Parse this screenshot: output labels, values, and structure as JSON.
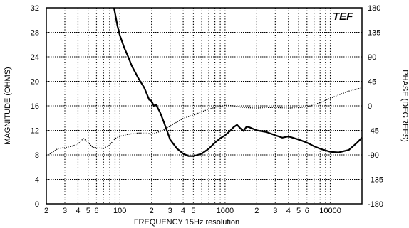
{
  "chart_data": {
    "type": "line",
    "logo": "TEF",
    "xlabel": "FREQUENCY  15Hz resolution",
    "ylabel_left": "MAGNITUDE (OHMS)",
    "ylabel_right": "PHASE (DEGREES)",
    "x_scale": "log",
    "xlim": [
      20,
      20000
    ],
    "ylim_left": [
      0,
      32
    ],
    "ylim_right": [
      -180,
      180
    ],
    "grid": true,
    "x_tick_labels": [
      {
        "value": 20,
        "label": "2"
      },
      {
        "value": 30,
        "label": "3"
      },
      {
        "value": 40,
        "label": "4"
      },
      {
        "value": 50,
        "label": "5"
      },
      {
        "value": 60,
        "label": "6"
      },
      {
        "value": 100,
        "label": "100"
      },
      {
        "value": 200,
        "label": "2"
      },
      {
        "value": 300,
        "label": "3"
      },
      {
        "value": 400,
        "label": "4"
      },
      {
        "value": 500,
        "label": "5"
      },
      {
        "value": 1000,
        "label": "1000"
      },
      {
        "value": 2000,
        "label": "2"
      },
      {
        "value": 3000,
        "label": "3"
      },
      {
        "value": 4000,
        "label": "4"
      },
      {
        "value": 5000,
        "label": "5"
      },
      {
        "value": 6000,
        "label": "6"
      },
      {
        "value": 10000,
        "label": "10000"
      }
    ],
    "y_left_ticks": [
      "0",
      "4",
      "8",
      "12",
      "16",
      "20",
      "24",
      "28",
      "32"
    ],
    "y_right_ticks": [
      "-180",
      "-135",
      "-90",
      "-45",
      "0",
      "45",
      "90",
      "135",
      "180"
    ],
    "series": [
      {
        "axis": "left",
        "style": "solid",
        "x": [
          88,
          95,
          100,
          110,
          120,
          130,
          150,
          170,
          180,
          190,
          200,
          210,
          220,
          240,
          260,
          280,
          300,
          350,
          400,
          450,
          500,
          550,
          600,
          700,
          800,
          900,
          1000,
          1100,
          1200,
          1300,
          1400,
          1500,
          1600,
          1700,
          2000,
          2500,
          3000,
          3500,
          4000,
          5000,
          6000,
          7000,
          8000,
          10000,
          12000,
          15000,
          18000,
          20000
        ],
        "y": [
          32,
          29,
          27.5,
          25.5,
          24,
          22.5,
          20.5,
          19,
          18,
          17,
          16.8,
          16,
          16.2,
          15,
          13.5,
          12,
          10.5,
          9,
          8.2,
          7.8,
          7.8,
          8,
          8.2,
          9,
          10,
          10.7,
          11.2,
          11.8,
          12.5,
          12.9,
          12.3,
          11.9,
          12.6,
          12.5,
          12,
          11.7,
          11.2,
          10.8,
          11,
          10.5,
          10,
          9.4,
          9,
          8.5,
          8.4,
          8.8,
          10,
          10.8
        ]
      },
      {
        "axis": "right",
        "style": "dotted",
        "x": [
          20,
          23,
          26,
          30,
          35,
          40,
          45,
          50,
          55,
          60,
          70,
          80,
          90,
          100,
          120,
          150,
          180,
          200,
          250,
          300,
          400,
          500,
          600,
          700,
          800,
          900,
          1000,
          1200,
          1500,
          2000,
          2500,
          3000,
          4000,
          5000,
          6000,
          7000,
          8000,
          10000,
          12000,
          15000,
          20000
        ],
        "y": [
          -92,
          -85,
          -78,
          -77,
          -74,
          -70,
          -60,
          -67,
          -76,
          -77,
          -78,
          -72,
          -60,
          -56,
          -52,
          -50,
          -50,
          -52,
          -46,
          -37,
          -23,
          -17,
          -11,
          -6,
          -3,
          -1,
          1,
          0,
          -3,
          -4,
          -3,
          -3,
          -4,
          -3,
          -2,
          2,
          6,
          14,
          20,
          27,
          33
        ]
      }
    ]
  }
}
